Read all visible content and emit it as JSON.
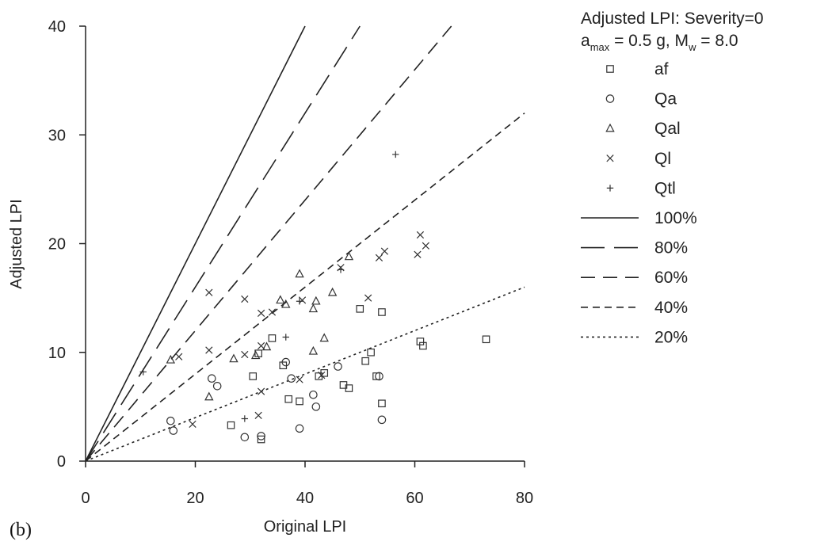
{
  "chart_data": {
    "type": "scatter",
    "panel_label": "(b)",
    "xlabel": "Original LPI",
    "ylabel": "Adjusted LPI",
    "xlim": [
      0,
      80
    ],
    "ylim": [
      0,
      40
    ],
    "x_ticks": [
      0,
      20,
      40,
      60,
      80
    ],
    "y_ticks": [
      0,
      10,
      20,
      30,
      40
    ],
    "grid": false,
    "legend_position": "right",
    "legend_title_line1": "Adjusted LPI:  Severity=0",
    "legend_title_line2_parts": {
      "a": "a",
      "a_sub": "max",
      "mid": " = 0.5 g, M",
      "m_sub": "w",
      "end": " = 8.0"
    },
    "series": [
      {
        "name": "af",
        "marker": "square",
        "points": [
          [
            26.5,
            3.3
          ],
          [
            30.5,
            7.8
          ],
          [
            31.5,
            9.9
          ],
          [
            32,
            2
          ],
          [
            34,
            11.3
          ],
          [
            36,
            8.8
          ],
          [
            37,
            5.7
          ],
          [
            39,
            5.5
          ],
          [
            42.5,
            7.8
          ],
          [
            43.5,
            8.1
          ],
          [
            47,
            7
          ],
          [
            48,
            6.7
          ],
          [
            50,
            14
          ],
          [
            51,
            9.2
          ],
          [
            52,
            10
          ],
          [
            53,
            7.8
          ],
          [
            54,
            13.7
          ],
          [
            54,
            5.3
          ],
          [
            61,
            11
          ],
          [
            61.5,
            10.6
          ],
          [
            73,
            11.2
          ]
        ]
      },
      {
        "name": "Qa",
        "marker": "circle",
        "points": [
          [
            15.5,
            3.7
          ],
          [
            16,
            2.8
          ],
          [
            23,
            7.6
          ],
          [
            24,
            6.9
          ],
          [
            29,
            2.2
          ],
          [
            32,
            2.3
          ],
          [
            36.5,
            9.1
          ],
          [
            37.5,
            7.6
          ],
          [
            39,
            3
          ],
          [
            41.5,
            6.1
          ],
          [
            42,
            5
          ],
          [
            46,
            8.7
          ],
          [
            53.5,
            7.8
          ],
          [
            54,
            3.8
          ]
        ]
      },
      {
        "name": "Qal",
        "marker": "triangle",
        "points": [
          [
            15.5,
            9.3
          ],
          [
            22.5,
            5.9
          ],
          [
            27,
            9.4
          ],
          [
            31,
            9.7
          ],
          [
            33,
            10.5
          ],
          [
            35.5,
            14.8
          ],
          [
            36.5,
            14.4
          ],
          [
            39,
            17.2
          ],
          [
            41.5,
            10.1
          ],
          [
            41.5,
            14
          ],
          [
            42,
            14.7
          ],
          [
            43.5,
            11.3
          ],
          [
            45,
            15.5
          ],
          [
            48,
            18.8
          ]
        ]
      },
      {
        "name": "Ql",
        "marker": "cross",
        "points": [
          [
            17,
            9.6
          ],
          [
            19.5,
            3.4
          ],
          [
            22.5,
            15.5
          ],
          [
            22.5,
            10.2
          ],
          [
            29,
            14.9
          ],
          [
            29,
            9.8
          ],
          [
            31.5,
            4.2
          ],
          [
            32,
            13.6
          ],
          [
            32,
            10.6
          ],
          [
            32,
            6.4
          ],
          [
            34,
            13.7
          ],
          [
            39,
            7.5
          ],
          [
            39.5,
            14.8
          ],
          [
            43,
            7.9
          ],
          [
            46.5,
            17.8
          ],
          [
            51.5,
            15
          ],
          [
            53.5,
            18.7
          ],
          [
            54.5,
            19.3
          ],
          [
            60.5,
            19
          ],
          [
            61,
            20.8
          ],
          [
            62,
            19.8
          ]
        ]
      },
      {
        "name": "Qtl",
        "marker": "plus",
        "points": [
          [
            10.5,
            8.2
          ],
          [
            29,
            3.9
          ],
          [
            36.5,
            11.4
          ],
          [
            39,
            14.7
          ],
          [
            46.5,
            17.6
          ],
          [
            56.5,
            28.2
          ]
        ]
      }
    ],
    "reference_lines": [
      {
        "name": "100%",
        "slope": 1.0,
        "dash": "solid"
      },
      {
        "name": "80%",
        "slope": 0.8,
        "dash": "longdash"
      },
      {
        "name": "60%",
        "slope": 0.6,
        "dash": "dash"
      },
      {
        "name": "40%",
        "slope": 0.4,
        "dash": "shortdash"
      },
      {
        "name": "20%",
        "slope": 0.2,
        "dash": "dot"
      }
    ]
  }
}
